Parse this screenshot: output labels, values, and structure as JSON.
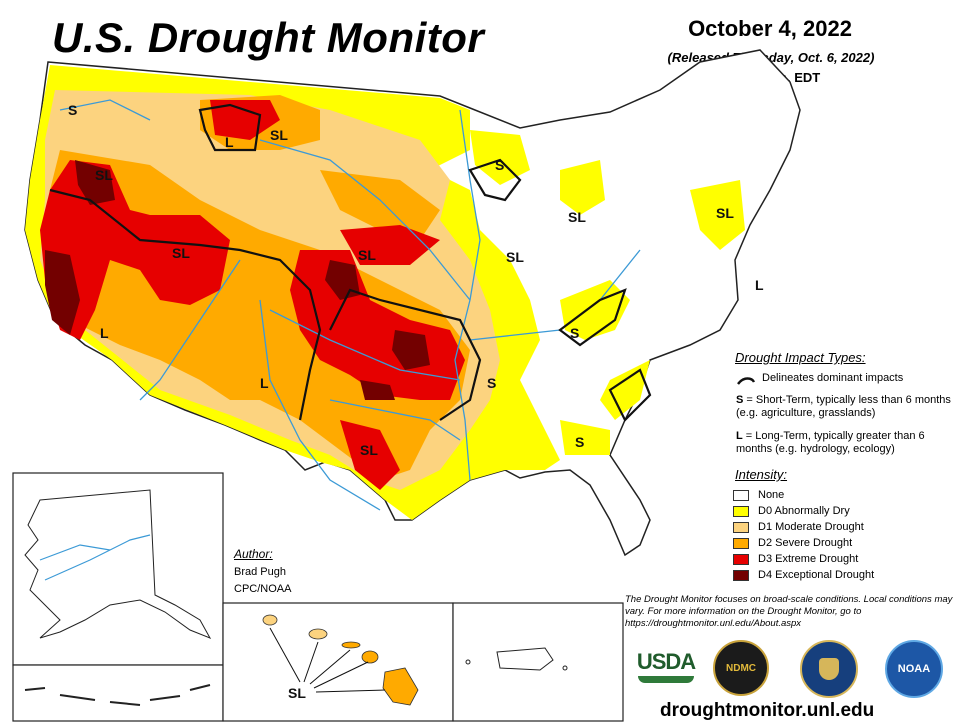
{
  "header": {
    "title": "U.S. Drought Monitor",
    "date": "October 4, 2022",
    "released": "(Released Thursday, Oct. 6, 2022)",
    "valid": "Valid 8 a.m. EDT"
  },
  "colors": {
    "none": "#ffffff",
    "d0": "#ffff00",
    "d1": "#fcd37f",
    "d2": "#ffaa00",
    "d3": "#e60000",
    "d4": "#730000",
    "water": "#3c9ad6"
  },
  "impact_types": {
    "title": "Drought Impact Types:",
    "line_label": "Delineates dominant impacts",
    "s_code": "S",
    "s_desc": " = Short-Term, typically less than 6 months (e.g. agriculture, grasslands)",
    "l_code": "L",
    "l_desc": " = Long-Term, typically greater than 6 months (e.g. hydrology, ecology)"
  },
  "intensity": {
    "title": "Intensity:",
    "levels": [
      {
        "label": "None",
        "color": "#ffffff"
      },
      {
        "label": "D0 Abnormally Dry",
        "color": "#ffff00"
      },
      {
        "label": "D1 Moderate Drought",
        "color": "#fcd37f"
      },
      {
        "label": "D2 Severe Drought",
        "color": "#ffaa00"
      },
      {
        "label": "D3 Extreme Drought",
        "color": "#e60000"
      },
      {
        "label": "D4 Exceptional Drought",
        "color": "#730000"
      }
    ]
  },
  "map_labels": [
    "S",
    "SL",
    "L",
    "SL",
    "SL",
    "SL",
    "SL",
    "S",
    "SL",
    "L",
    "S",
    "S",
    "L",
    "SL",
    "S",
    "SL"
  ],
  "author": {
    "title": "Author:",
    "name": "Brad Pugh",
    "org": "CPC/NOAA"
  },
  "note": "The Drought Monitor focuses on broad-scale conditions. Local conditions may vary. For more information on the Drought Monitor, go to https://droughtmonitor.unl.edu/About.aspx",
  "logos": {
    "usda": "USDA",
    "ndmc": "NDMC",
    "noaa": "NOAA"
  },
  "website": "droughtmonitor.unl.edu"
}
